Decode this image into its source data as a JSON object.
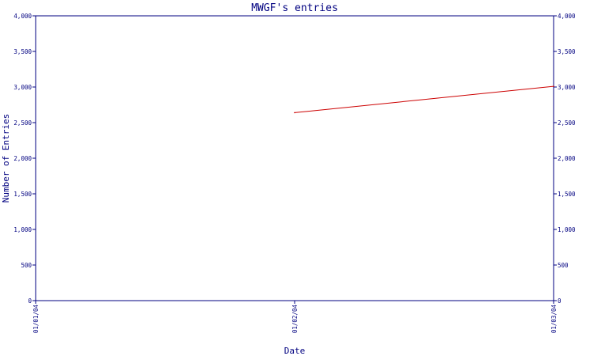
{
  "chart_data": {
    "type": "line",
    "title": "MWGF's entries",
    "xlabel": "Date",
    "ylabel": "Number of Entries",
    "x_ticks": [
      "01/01/04",
      "01/02/04",
      "01/03/04"
    ],
    "y_ticks": [
      "0",
      "500",
      "1,000",
      "1,500",
      "2,000",
      "2,500",
      "3,000",
      "3,500",
      "4,000"
    ],
    "ylim": [
      0,
      4000
    ],
    "grid": false,
    "series": [
      {
        "x": [
          "01/02/04",
          "01/03/04"
        ],
        "values": [
          2640,
          3010
        ],
        "color": "#cc0000"
      }
    ],
    "colors": {
      "axis": "#000080",
      "line": "#cc0000",
      "background": "#ffffff"
    }
  }
}
